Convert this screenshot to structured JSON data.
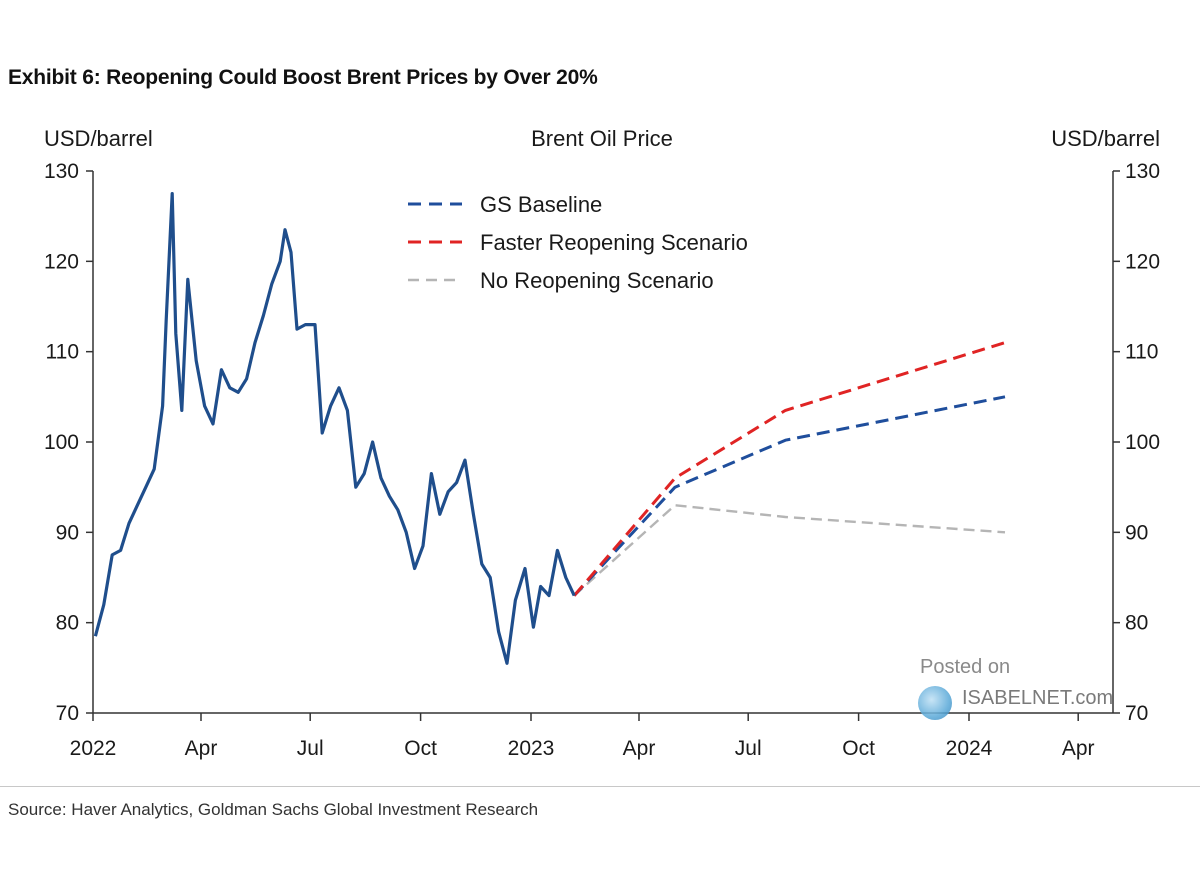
{
  "header": {
    "exhibit_title": "Exhibit 6: Reopening Could Boost Brent Prices by Over 20%"
  },
  "footer": {
    "source": "Source: Haver Analytics, Goldman Sachs Global Investment Research"
  },
  "watermark": {
    "posted_on": "Posted on",
    "brand": "ISABELNET.com"
  },
  "colors": {
    "history": "#1f4e8c",
    "baseline": "#1f4e9c",
    "faster": "#e02424",
    "no_reopening": "#b5b5b5",
    "axis": "#333333"
  },
  "chart_data": {
    "type": "line",
    "title": "Brent Oil Price",
    "ylabel_left": "USD/barrel",
    "ylabel_right": "USD/barrel",
    "ylim": [
      70,
      130
    ],
    "yticks": [
      70,
      80,
      90,
      100,
      110,
      120,
      130
    ],
    "xlim": [
      "2022-01-01",
      "2024-04-30"
    ],
    "xticks": [
      {
        "date": "2022-01-01",
        "label": "2022"
      },
      {
        "date": "2022-04-01",
        "label": "Apr"
      },
      {
        "date": "2022-07-01",
        "label": "Jul"
      },
      {
        "date": "2022-10-01",
        "label": "Oct"
      },
      {
        "date": "2023-01-01",
        "label": "2023"
      },
      {
        "date": "2023-04-01",
        "label": "Apr"
      },
      {
        "date": "2023-07-01",
        "label": "Jul"
      },
      {
        "date": "2023-10-01",
        "label": "Oct"
      },
      {
        "date": "2024-01-01",
        "label": "2024"
      },
      {
        "date": "2024-04-01",
        "label": "Apr"
      }
    ],
    "legend_placement": "top-center",
    "series": [
      {
        "key": "history",
        "style": "solid",
        "x": [
          "2022-01-03",
          "2022-01-10",
          "2022-01-17",
          "2022-01-24",
          "2022-01-31",
          "2022-02-07",
          "2022-02-14",
          "2022-02-21",
          "2022-02-28",
          "2022-03-03",
          "2022-03-08",
          "2022-03-11",
          "2022-03-16",
          "2022-03-21",
          "2022-03-28",
          "2022-04-04",
          "2022-04-11",
          "2022-04-18",
          "2022-04-25",
          "2022-05-02",
          "2022-05-09",
          "2022-05-16",
          "2022-05-23",
          "2022-05-30",
          "2022-06-06",
          "2022-06-10",
          "2022-06-15",
          "2022-06-20",
          "2022-06-27",
          "2022-07-05",
          "2022-07-11",
          "2022-07-18",
          "2022-07-25",
          "2022-08-01",
          "2022-08-08",
          "2022-08-15",
          "2022-08-22",
          "2022-08-29",
          "2022-09-05",
          "2022-09-12",
          "2022-09-19",
          "2022-09-26",
          "2022-10-03",
          "2022-10-10",
          "2022-10-17",
          "2022-10-24",
          "2022-10-31",
          "2022-11-07",
          "2022-11-14",
          "2022-11-21",
          "2022-11-28",
          "2022-12-05",
          "2022-12-12",
          "2022-12-19",
          "2022-12-27",
          "2023-01-03",
          "2023-01-09",
          "2023-01-16",
          "2023-01-23",
          "2023-01-30",
          "2023-02-06"
        ],
        "values": [
          78.5,
          82,
          87.5,
          88,
          91,
          93,
          95,
          97,
          104,
          113.5,
          127.5,
          112,
          103.5,
          118,
          109,
          104,
          102,
          108,
          106,
          105.5,
          107,
          111,
          114,
          117.5,
          120,
          123.5,
          121,
          112.5,
          113,
          113,
          101,
          104,
          106,
          103.5,
          95,
          96.5,
          100,
          96,
          94,
          92.5,
          90,
          86,
          88.5,
          96.5,
          92,
          94.5,
          95.5,
          98,
          92,
          86.5,
          85,
          79,
          75.5,
          82.5,
          86,
          79.5,
          84,
          83,
          88,
          85,
          83
        ]
      },
      {
        "name": "GS Baseline",
        "key": "baseline",
        "style": "dashed",
        "x": [
          "2023-02-06",
          "2023-05-01",
          "2023-08-01",
          "2024-01-31"
        ],
        "values": [
          83,
          95,
          100.2,
          105
        ]
      },
      {
        "name": "Faster Reopening Scenario",
        "key": "faster",
        "style": "dashed",
        "x": [
          "2023-02-06",
          "2023-05-01",
          "2023-08-01",
          "2024-01-31"
        ],
        "values": [
          83,
          96,
          103.5,
          111
        ]
      },
      {
        "name": "No Reopening Scenario",
        "key": "no_reopening",
        "style": "dashed",
        "x": [
          "2023-02-06",
          "2023-05-01",
          "2023-08-01",
          "2024-01-31"
        ],
        "values": [
          83,
          93,
          91.7,
          90
        ]
      }
    ]
  }
}
